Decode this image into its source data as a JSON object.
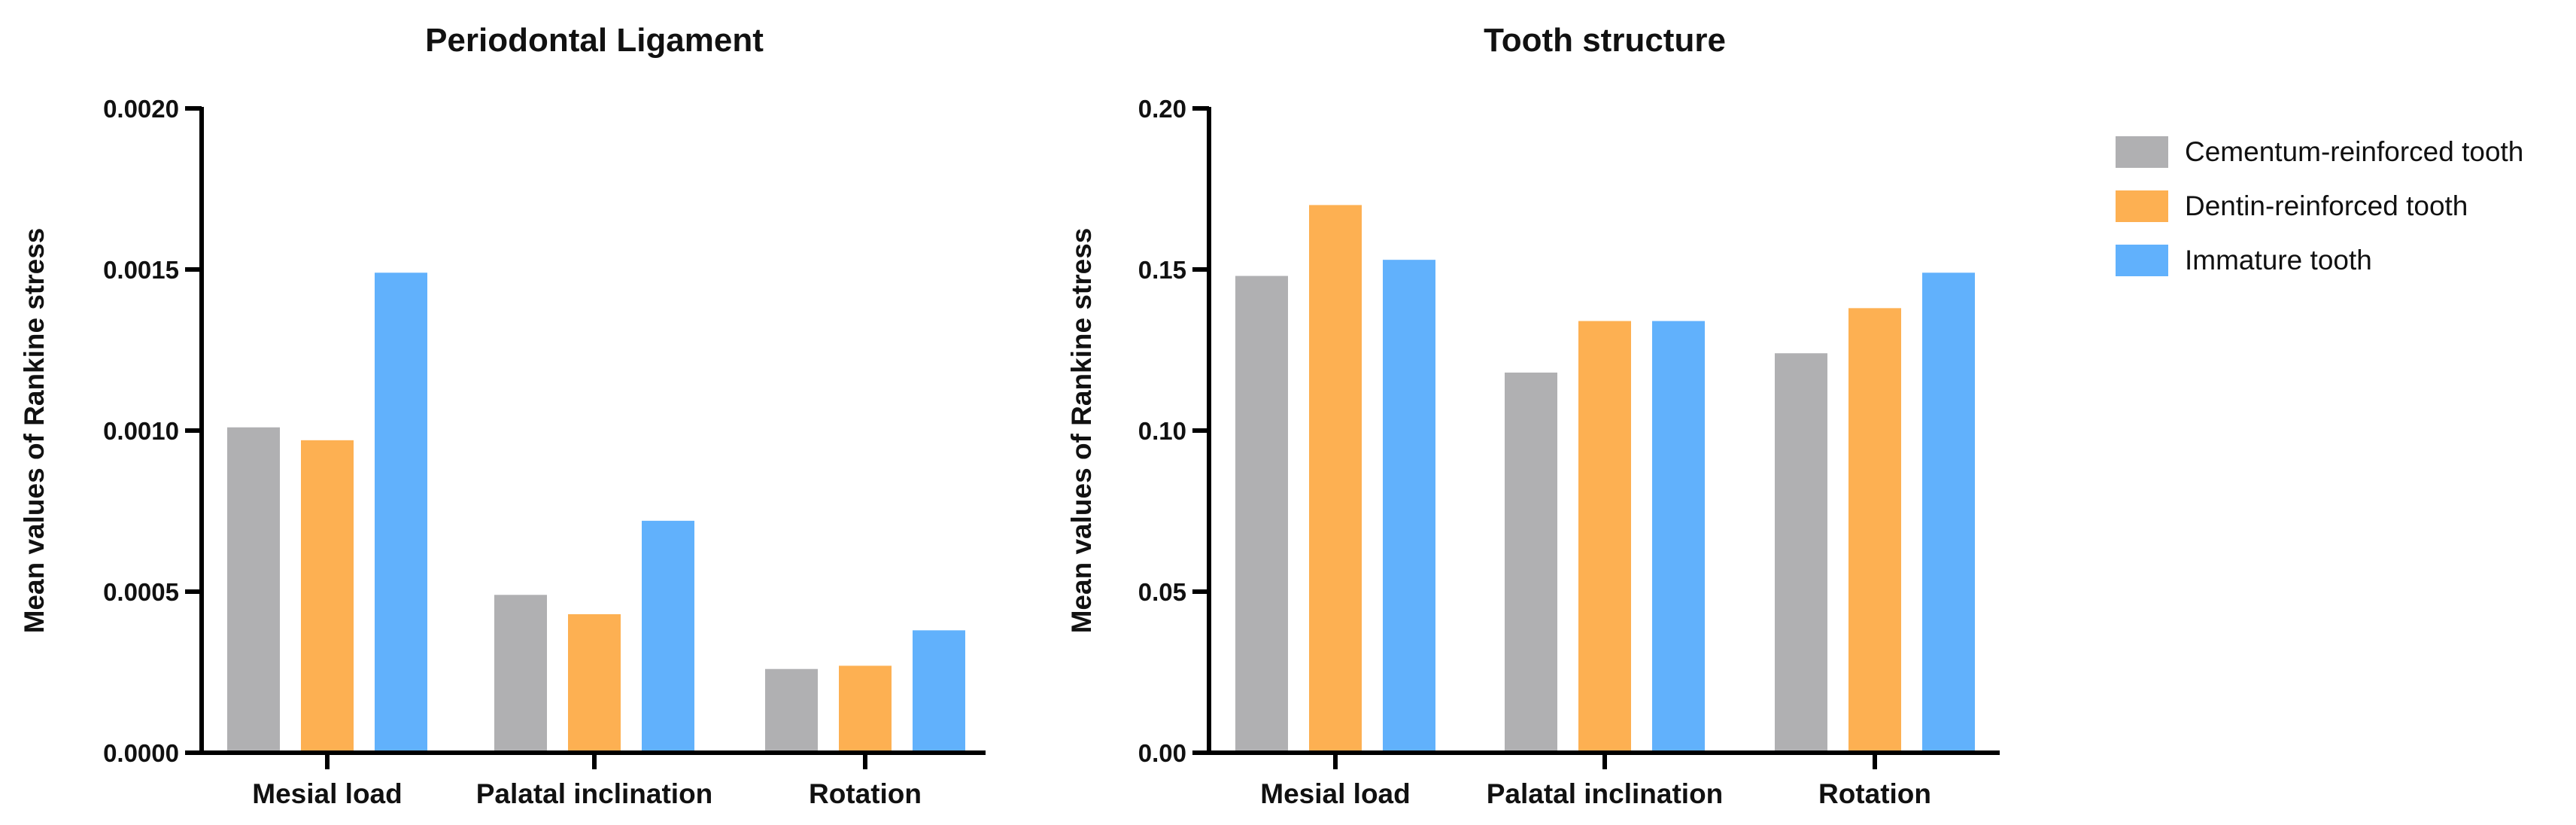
{
  "chart_data": [
    {
      "type": "bar",
      "title": "Periodontal Ligament",
      "ylabel": "Mean values of Rankine stress",
      "xlabel": "",
      "categories": [
        "Mesial load",
        "Palatal inclination",
        "Rotation"
      ],
      "ylim": [
        0,
        0.002
      ],
      "yticks": [
        "0.0000",
        "0.0005",
        "0.0010",
        "0.0015",
        "0.0020"
      ],
      "series": [
        {
          "name": "Cementum-reinforced tooth",
          "color": "#b0b0b2",
          "values": [
            0.00101,
            0.00049,
            0.00026
          ]
        },
        {
          "name": "Dentin-reinforced tooth",
          "color": "#fdb052",
          "values": [
            0.00097,
            0.00043,
            0.00027
          ]
        },
        {
          "name": "Immature tooth",
          "color": "#61b1fc",
          "values": [
            0.00149,
            0.00072,
            0.00038
          ]
        }
      ]
    },
    {
      "type": "bar",
      "title": "Tooth structure",
      "ylabel": "Mean values of Rankine stress",
      "xlabel": "",
      "categories": [
        "Mesial load",
        "Palatal inclination",
        "Rotation"
      ],
      "ylim": [
        0,
        0.2
      ],
      "yticks": [
        "0.00",
        "0.05",
        "0.10",
        "0.15",
        "0.20"
      ],
      "series": [
        {
          "name": "Cementum-reinforced tooth",
          "color": "#b0b0b2",
          "values": [
            0.148,
            0.118,
            0.124
          ]
        },
        {
          "name": "Dentin-reinforced tooth",
          "color": "#fdb052",
          "values": [
            0.17,
            0.134,
            0.138
          ]
        },
        {
          "name": "Immature tooth",
          "color": "#61b1fc",
          "values": [
            0.153,
            0.134,
            0.149
          ]
        }
      ]
    }
  ],
  "legend": {
    "placement": "right",
    "items": [
      {
        "label": "Cementum-reinforced tooth",
        "color": "#b0b0b2"
      },
      {
        "label": "Dentin-reinforced tooth",
        "color": "#fdb052"
      },
      {
        "label": "Immature tooth",
        "color": "#61b1fc"
      }
    ]
  }
}
